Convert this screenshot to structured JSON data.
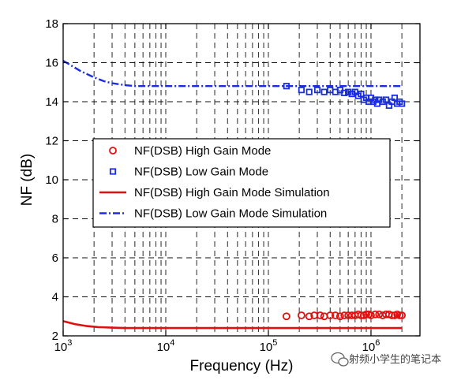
{
  "chart_data": {
    "type": "line",
    "xlabel": "Frequency (Hz)",
    "ylabel": "NF (dB)",
    "xscale": "log",
    "xlim": [
      1000,
      3000000
    ],
    "ylim": [
      2,
      18
    ],
    "x_ticks": [
      {
        "value": 1000,
        "base": "10",
        "exp": "3"
      },
      {
        "value": 10000,
        "base": "10",
        "exp": "4"
      },
      {
        "value": 100000,
        "base": "10",
        "exp": "5"
      },
      {
        "value": 1000000,
        "base": "10",
        "exp": "6"
      }
    ],
    "y_ticks": [
      "2",
      "4",
      "6",
      "8",
      "10",
      "12",
      "14",
      "16",
      "18"
    ],
    "grid": true,
    "legend_position": "center-left",
    "series": [
      {
        "name": "NF(DSB) High Gain Mode",
        "kind": "marker-circle",
        "color": "#e01010",
        "x": [
          150000,
          210000,
          250000,
          280000,
          320000,
          350000,
          400000,
          450000,
          500000,
          550000,
          600000,
          650000,
          700000,
          750000,
          800000,
          850000,
          900000,
          950000,
          1000000,
          1100000,
          1200000,
          1300000,
          1400000,
          1500000,
          1600000,
          1700000,
          1800000,
          1900000,
          2000000
        ],
        "y": [
          3.0,
          3.05,
          3.0,
          3.05,
          3.05,
          3.0,
          3.05,
          3.05,
          3.0,
          3.05,
          3.05,
          3.05,
          3.05,
          3.1,
          3.05,
          3.05,
          3.1,
          3.1,
          3.05,
          3.1,
          3.1,
          3.05,
          3.1,
          3.1,
          3.05,
          3.05,
          3.1,
          3.05,
          3.05
        ]
      },
      {
        "name": "NF(DSB) Low Gain Mode",
        "kind": "marker-square",
        "color": "#1a2ee0",
        "x": [
          150000,
          210000,
          250000,
          300000,
          350000,
          400000,
          450000,
          500000,
          550000,
          600000,
          650000,
          700000,
          750000,
          800000,
          850000,
          900000,
          950000,
          1000000,
          1050000,
          1100000,
          1150000,
          1200000,
          1300000,
          1400000,
          1500000,
          1600000,
          1700000,
          1800000,
          1900000,
          2000000
        ],
        "y": [
          14.8,
          14.6,
          14.5,
          14.6,
          14.5,
          14.6,
          14.5,
          14.6,
          14.45,
          14.5,
          14.4,
          14.5,
          14.3,
          14.4,
          14.1,
          14.2,
          14.0,
          14.2,
          14.0,
          14.1,
          13.9,
          14.1,
          14.0,
          14.1,
          13.8,
          14.0,
          14.2,
          13.9,
          14.0,
          13.9
        ]
      },
      {
        "name": "NF(DSB) High Gain Mode Simulation",
        "kind": "line-solid",
        "color": "#e01010",
        "x": [
          1000,
          1300,
          1700,
          2200,
          3000,
          4000,
          6000,
          10000,
          30000,
          100000,
          1000000,
          2000000
        ],
        "y": [
          2.75,
          2.6,
          2.5,
          2.45,
          2.42,
          2.4,
          2.4,
          2.4,
          2.4,
          2.4,
          2.4,
          2.4
        ]
      },
      {
        "name": "NF(DSB) Low Gain Mode Simulation",
        "kind": "line-dashdot",
        "color": "#1a2ee0",
        "x": [
          1000,
          1200,
          1500,
          2000,
          2500,
          3000,
          4000,
          5000,
          7000,
          10000,
          30000,
          100000,
          1000000,
          2000000
        ],
        "y": [
          16.1,
          15.85,
          15.55,
          15.25,
          15.05,
          14.95,
          14.85,
          14.8,
          14.8,
          14.8,
          14.8,
          14.8,
          14.8,
          14.8
        ]
      }
    ]
  },
  "watermark": {
    "text": "射频小学生的笔记本",
    "icon": "wechat-bubble-icon"
  }
}
